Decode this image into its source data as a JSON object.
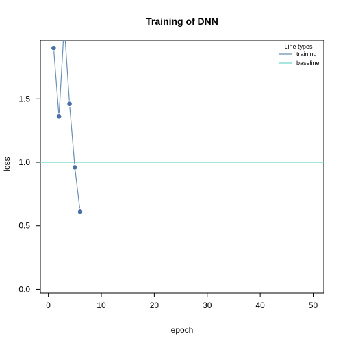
{
  "chart_data": {
    "type": "line",
    "title": "Training of DNN",
    "xlabel": "epoch",
    "ylabel": "loss",
    "xlim": [
      -1.5,
      52
    ],
    "ylim": [
      -0.03,
      1.96
    ],
    "xticks": [
      0,
      10,
      20,
      30,
      40,
      50
    ],
    "yticks": [
      0.0,
      0.5,
      1.0,
      1.5
    ],
    "ytick_labels": [
      "0.0",
      "0.5",
      "1.0",
      "1.5"
    ],
    "legend": {
      "title": "Line types",
      "placement": "top-right",
      "entries": [
        "training",
        "baseline"
      ]
    },
    "series": [
      {
        "name": "training",
        "color": "#6a8fb5",
        "marker_color": "#4a70a8",
        "x": [
          1,
          2,
          3,
          4,
          5,
          6
        ],
        "y": [
          1.9,
          1.36,
          2.08,
          1.46,
          0.96,
          0.61
        ],
        "markers": [
          true,
          true,
          false,
          true,
          true,
          true
        ]
      },
      {
        "name": "baseline",
        "color": "#6fd6cc",
        "type": "hline",
        "y": 1.0
      }
    ],
    "grid": false
  }
}
